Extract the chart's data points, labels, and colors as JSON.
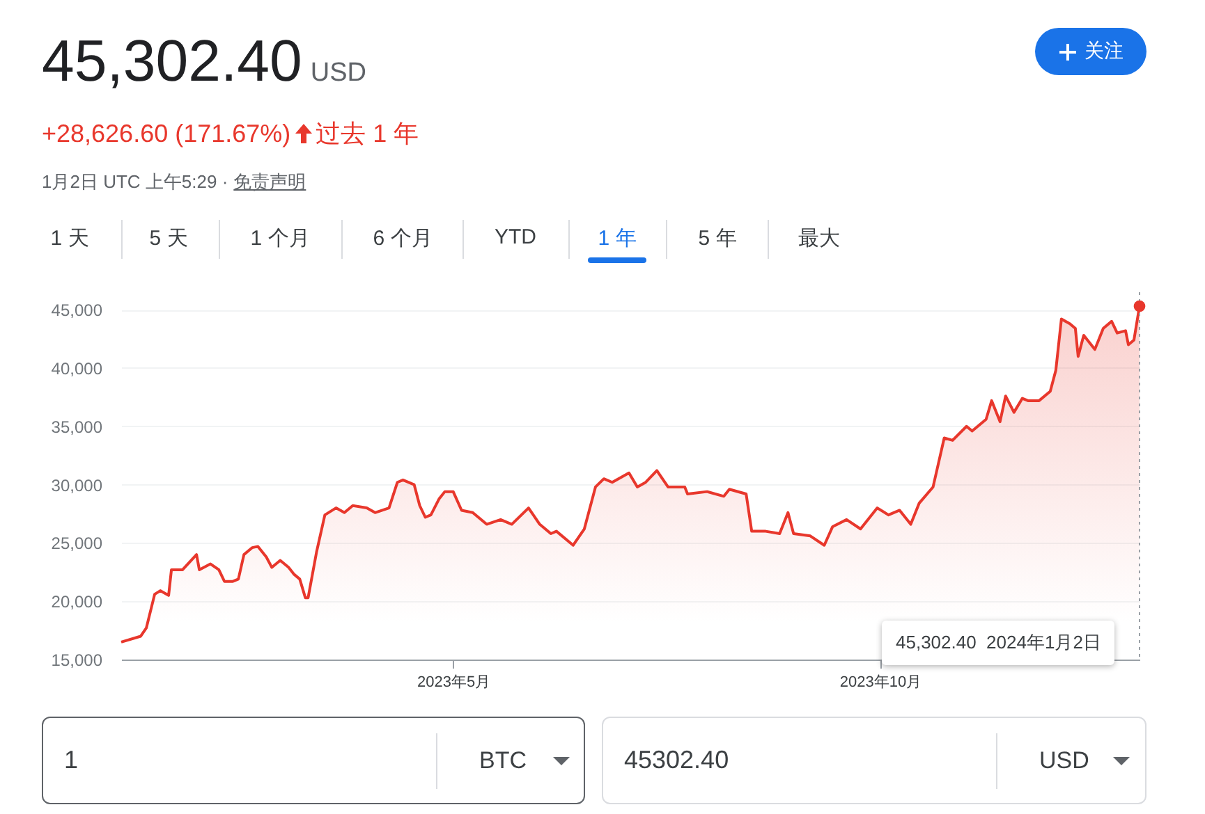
{
  "chart_data": {
    "type": "area",
    "title": "45,302.40",
    "subtitle": "+28,626.60 (171.67%)",
    "annotations": [
      "USD",
      "过去 1 年",
      "1月2日 UTC 上午5:29 ·",
      "免责声明",
      "关注",
      "1 天",
      "5 天",
      "1 个月",
      "6 个月",
      "YTD",
      "1 年",
      "5 年",
      "最大",
      "1",
      "BTC",
      "45302.40",
      "USD",
      "45,302.40  2024年1月2日"
    ],
    "x": [
      "2023-01-02",
      "2023-01-09",
      "2023-01-11",
      "2023-01-14",
      "2023-01-16",
      "2023-01-19",
      "2023-01-20",
      "2023-01-24",
      "2023-01-29",
      "2023-01-30",
      "2023-02-03",
      "2023-02-06",
      "2023-02-08",
      "2023-02-11",
      "2023-02-13",
      "2023-02-15",
      "2023-02-18",
      "2023-02-20",
      "2023-02-23",
      "2023-02-25",
      "2023-02-28",
      "2023-03-03",
      "2023-03-05",
      "2023-03-07",
      "2023-03-09",
      "2023-03-10",
      "2023-03-13",
      "2023-03-16",
      "2023-03-20",
      "2023-03-23",
      "2023-03-26",
      "2023-03-31",
      "2023-04-03",
      "2023-04-08",
      "2023-04-11",
      "2023-04-13",
      "2023-04-17",
      "2023-04-19",
      "2023-04-21",
      "2023-04-23",
      "2023-04-26",
      "2023-04-28",
      "2023-05-01",
      "2023-05-04",
      "2023-05-08",
      "2023-05-13",
      "2023-05-18",
      "2023-05-22",
      "2023-05-28",
      "2023-06-01",
      "2023-06-05",
      "2023-06-07",
      "2023-06-13",
      "2023-06-17",
      "2023-06-21",
      "2023-06-24",
      "2023-06-27",
      "2023-07-03",
      "2023-07-06",
      "2023-07-09",
      "2023-07-13",
      "2023-07-17",
      "2023-07-23",
      "2023-07-24",
      "2023-07-31",
      "2023-08-06",
      "2023-08-08",
      "2023-08-14",
      "2023-08-16",
      "2023-08-21",
      "2023-08-26",
      "2023-08-29",
      "2023-08-31",
      "2023-09-06",
      "2023-09-11",
      "2023-09-14",
      "2023-09-19",
      "2023-09-24",
      "2023-09-30",
      "2023-10-04",
      "2023-10-08",
      "2023-10-12",
      "2023-10-15",
      "2023-10-20",
      "2023-10-24",
      "2023-10-27",
      "2023-11-01",
      "2023-11-03",
      "2023-11-08",
      "2023-11-10",
      "2023-11-13",
      "2023-11-15",
      "2023-11-18",
      "2023-11-21",
      "2023-11-23",
      "2023-11-27",
      "2023-12-01",
      "2023-12-03",
      "2023-12-05",
      "2023-12-08",
      "2023-12-10",
      "2023-12-11",
      "2023-12-13",
      "2023-12-17",
      "2023-12-20",
      "2023-12-23",
      "2023-12-25",
      "2023-12-28",
      "2023-12-29",
      "2023-12-31",
      "2024-01-02"
    ],
    "series": [
      {
        "color": "#e8372c",
        "values": [
          16500,
          17000,
          17700,
          20600,
          20900,
          20500,
          22700,
          22700,
          24000,
          22700,
          23200,
          22700,
          21700,
          21700,
          21900,
          24000,
          24600,
          24700,
          23800,
          22900,
          23500,
          22900,
          22300,
          21900,
          20300,
          20300,
          24200,
          27400,
          28000,
          27600,
          28200,
          28000,
          27600,
          28000,
          30200,
          30400,
          30000,
          28200,
          27200,
          27400,
          28800,
          29400,
          29400,
          27800,
          27600,
          26600,
          27000,
          26600,
          28000,
          26600,
          25800,
          26000,
          24800,
          26200,
          29800,
          30500,
          30200,
          31000,
          29800,
          30200,
          31200,
          29800,
          29800,
          29200,
          29400,
          29000,
          29600,
          29200,
          26000,
          26000,
          25800,
          27600,
          25800,
          25600,
          24800,
          26400,
          27000,
          26200,
          28000,
          27400,
          27800,
          26600,
          28400,
          29800,
          34000,
          33800,
          35000,
          34600,
          35600,
          37200,
          35400,
          37600,
          36200,
          37400,
          37200,
          37200,
          38000,
          39800,
          44200,
          43800,
          43400,
          41000,
          42800,
          41600,
          43400,
          44000,
          43000,
          43200,
          42000,
          42400,
          45302.4
        ]
      }
    ],
    "ylim": [
      15000,
      46500
    ],
    "yticks": [
      {
        "value": 15000,
        "label": "15,000"
      },
      {
        "value": 20000,
        "label": "20,000"
      },
      {
        "value": 25000,
        "label": "25,000"
      },
      {
        "value": 30000,
        "label": "30,000"
      },
      {
        "value": 35000,
        "label": "35,000"
      },
      {
        "value": 40000,
        "label": "40,000"
      },
      {
        "value": 45000,
        "label": "45,000"
      }
    ],
    "xlim": [
      "2023-01-02",
      "2024-01-02"
    ],
    "xticks": [
      {
        "value": "2023-05-01",
        "label": "2023年5月"
      },
      {
        "value": "2023-10-01",
        "label": "2023年10月"
      }
    ],
    "grid": "y",
    "ref_lines": [
      {
        "axis": "x",
        "value": "2024-01-02",
        "color": "#9aa0a6",
        "line_style": "dotted"
      }
    ]
  }
}
